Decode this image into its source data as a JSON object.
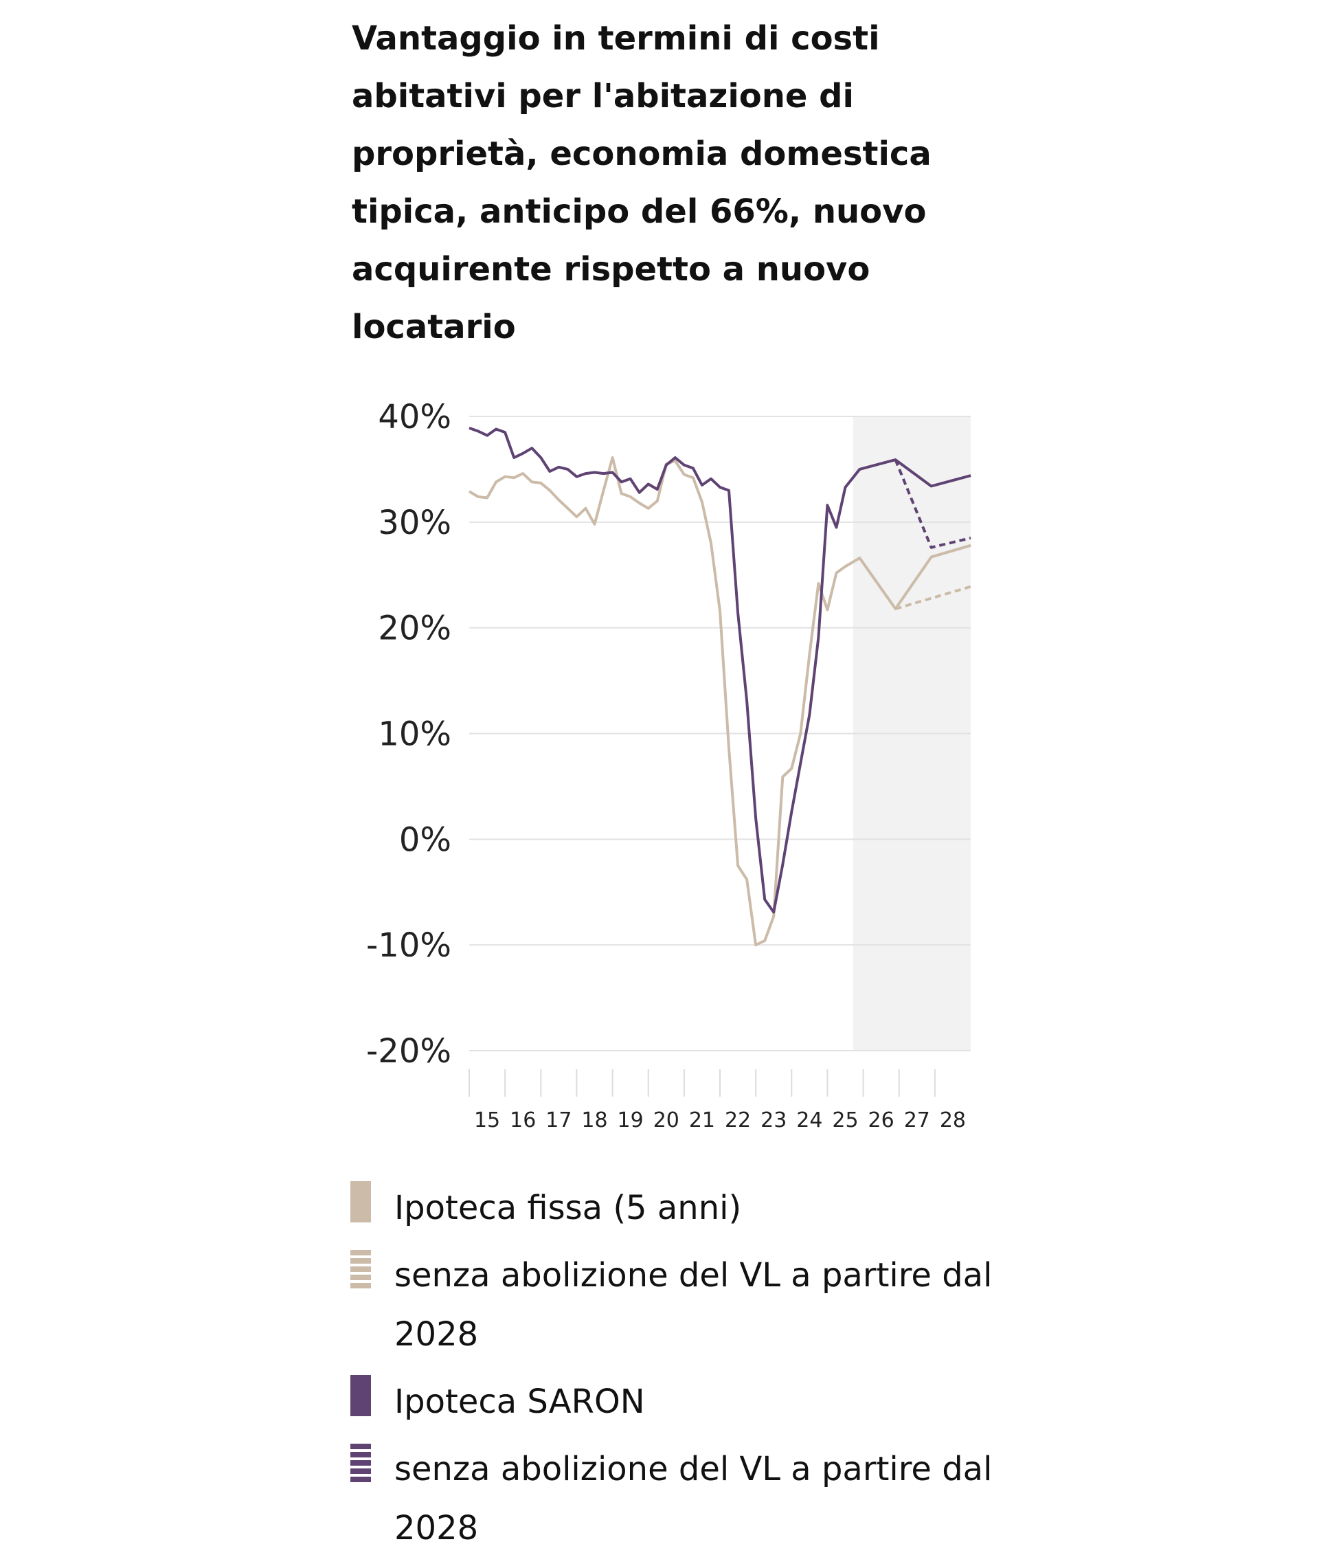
{
  "title": "Vantaggio in termini di costi abitativi per l'abitazione di proprietà, economia domestica tipica, anticipo del 66%, nuovo acquirente rispetto a nuovo locatario",
  "chart_data": {
    "type": "line",
    "title": "Vantaggio in termini di costi abitativi per l'abitazione di proprietà, economia domestica tipica, anticipo del 66%, nuovo acquirente rispetto a nuovo locatario",
    "xlim": [
      2015,
      2029
    ],
    "ylim": [
      -20,
      40
    ],
    "yticks": [
      40,
      30,
      20,
      10,
      0,
      -10,
      -20
    ],
    "ytick_labels": [
      "40%",
      "30%",
      "20%",
      "10%",
      "0%",
      "-10%",
      "-20%"
    ],
    "xtick_labels": [
      "15",
      "16",
      "17",
      "18",
      "19",
      "20",
      "21",
      "22",
      "23",
      "24",
      "25",
      "26",
      "27",
      "28"
    ],
    "grid": true,
    "forecast_shading_start": 2025.72,
    "forecast_shading_color": "#f2f2f2",
    "legend_position": "bottom",
    "series": [
      {
        "name": "Ipoteca fissa (5 anni)",
        "color": "#cbbba8",
        "style": "solid",
        "x": [
          2015,
          2015.25,
          2015.5,
          2015.75,
          2016,
          2016.25,
          2016.5,
          2016.75,
          2017,
          2017.25,
          2017.5,
          2017.75,
          2018,
          2018.25,
          2018.5,
          2018.75,
          2019,
          2019.25,
          2019.5,
          2019.75,
          2020,
          2020.25,
          2020.5,
          2020.75,
          2021,
          2021.25,
          2021.5,
          2021.75,
          2022,
          2022.25,
          2022.5,
          2022.75,
          2023,
          2023.25,
          2023.5,
          2023.75,
          2024,
          2024.25,
          2024.5,
          2024.75,
          2025,
          2025.25,
          2025.5,
          2025.9,
          2026.9,
          2027.9,
          2029
        ],
        "y": [
          32.9,
          32.4,
          32.3,
          33.8,
          34.3,
          34.2,
          34.6,
          33.8,
          33.7,
          33.0,
          32.1,
          31.3,
          30.5,
          31.3,
          29.8,
          33.0,
          36.1,
          32.7,
          32.4,
          31.8,
          31.3,
          32.0,
          35.5,
          35.8,
          34.5,
          34.2,
          31.9,
          28.0,
          21.6,
          8.6,
          -2.5,
          -3.8,
          -10.0,
          -9.6,
          -7.3,
          5.9,
          6.7,
          10.0,
          17.5,
          24.2,
          21.7,
          25.2,
          25.8,
          26.6,
          21.8,
          26.7,
          27.8
        ]
      },
      {
        "name": "senza abolizione del VL a partire dal 2028",
        "color": "#cbbba8",
        "style": "dashed",
        "x": [
          2026.9,
          2029
        ],
        "y": [
          21.8,
          23.9
        ]
      },
      {
        "name": "Ipoteca SARON",
        "color": "#5f4373",
        "style": "solid",
        "x": [
          2015,
          2015.25,
          2015.5,
          2015.75,
          2016,
          2016.25,
          2016.5,
          2016.75,
          2017,
          2017.25,
          2017.5,
          2017.75,
          2018,
          2018.25,
          2018.5,
          2018.75,
          2019,
          2019.25,
          2019.5,
          2019.75,
          2020,
          2020.25,
          2020.5,
          2020.75,
          2021,
          2021.25,
          2021.5,
          2021.75,
          2022,
          2022.25,
          2022.5,
          2022.75,
          2023,
          2023.25,
          2023.5,
          2023.75,
          2024,
          2024.25,
          2024.5,
          2024.75,
          2025,
          2025.25,
          2025.5,
          2025.9,
          2026.9,
          2027.9,
          2029
        ],
        "y": [
          38.9,
          38.6,
          38.2,
          38.8,
          38.5,
          36.1,
          36.5,
          37.0,
          36.1,
          34.8,
          35.2,
          35.0,
          34.3,
          34.6,
          34.7,
          34.6,
          34.7,
          33.8,
          34.1,
          32.8,
          33.6,
          33.1,
          35.4,
          36.1,
          35.4,
          35.1,
          33.5,
          34.1,
          33.3,
          33.0,
          21.4,
          13.1,
          2.0,
          -5.7,
          -6.9,
          -2.4,
          2.6,
          7.2,
          11.8,
          19.1,
          31.6,
          29.5,
          33.3,
          35.0,
          35.9,
          33.4,
          34.4
        ]
      },
      {
        "name": "senza abolizione del VL a partire dal 2028",
        "color": "#5f4373",
        "style": "dashed",
        "x": [
          2026.9,
          2027.9,
          2029
        ],
        "y": [
          35.9,
          27.6,
          28.5
        ]
      }
    ]
  },
  "legend": [
    {
      "label": "Ipoteca fissa (5 anni)",
      "color": "#cbbba8",
      "striped": false
    },
    {
      "label": "senza abolizione del VL a partire dal 2028",
      "color": "#cbbba8",
      "striped": true
    },
    {
      "label": "Ipoteca SARON",
      "color": "#5f4373",
      "striped": false
    },
    {
      "label": "senza abolizione del VL a partire dal 2028",
      "color": "#5f4373",
      "striped": true
    }
  ]
}
